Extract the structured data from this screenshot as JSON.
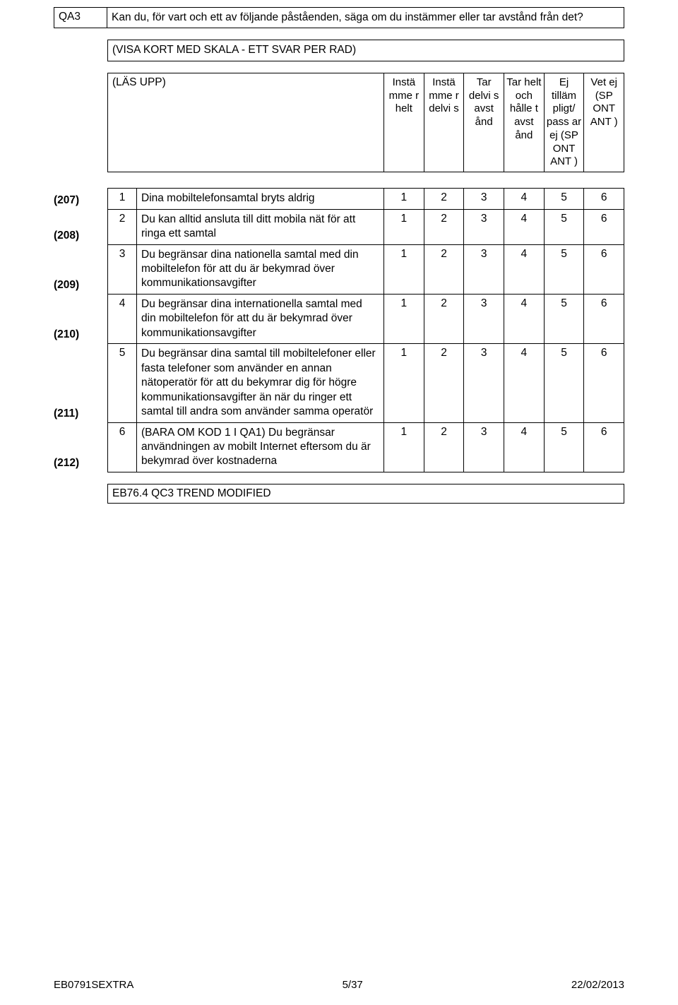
{
  "question": {
    "code": "QA3",
    "text": "Kan du, för vart och ett av följande påståenden, säga om du instämmer eller tar avstånd från det?"
  },
  "instruction": "(VISA KORT MED SKALA - ETT SVAR PER RAD)",
  "header": {
    "left": "(LÄS UPP)",
    "cols": [
      "Instä mme r helt",
      "Instä mme r delvi s",
      "Tar delvi s avst ånd",
      "Tar helt och hålle t avst ånd",
      "Ej tilläm pligt/ pass ar ej (SP ONT ANT )",
      "Vet ej (SP ONT ANT )"
    ]
  },
  "rows": [
    {
      "ref": "(207)",
      "num": "1",
      "stmt": "Dina mobiltelefonsamtal bryts aldrig",
      "vals": [
        "1",
        "2",
        "3",
        "4",
        "5",
        "6"
      ]
    },
    {
      "ref": "(208)",
      "num": "2",
      "stmt": "Du kan alltid ansluta till ditt mobila nät för att ringa ett samtal",
      "vals": [
        "1",
        "2",
        "3",
        "4",
        "5",
        "6"
      ]
    },
    {
      "ref": "(209)",
      "num": "3",
      "stmt": "Du begränsar dina nationella samtal med din mobiltelefon för att du är bekymrad över kommunikationsavgifter",
      "vals": [
        "1",
        "2",
        "3",
        "4",
        "5",
        "6"
      ]
    },
    {
      "ref": "(210)",
      "num": "4",
      "stmt": "Du begränsar dina internationella samtal med din mobiltelefon för att du är bekymrad över kommunikationsavgifter",
      "vals": [
        "1",
        "2",
        "3",
        "4",
        "5",
        "6"
      ]
    },
    {
      "ref": "(211)",
      "num": "5",
      "stmt": "Du begränsar dina samtal till mobiltelefoner eller fasta telefoner som använder en annan nätoperatör för att du bekymrar dig för högre kommunikationsavgifter än när du ringer ett samtal till andra som använder samma operatör",
      "vals": [
        "1",
        "2",
        "3",
        "4",
        "5",
        "6"
      ]
    },
    {
      "ref": "(212)",
      "num": "6",
      "stmt": "(BARA OM KOD 1 I QA1) Du begränsar användningen av mobilt Internet eftersom du är bekymrad över kostnaderna",
      "vals": [
        "1",
        "2",
        "3",
        "4",
        "5",
        "6"
      ]
    }
  ],
  "trend": "EB76.4 QC3 TREND MODIFIED",
  "footer": {
    "left": "EB0791SEXTRA",
    "center": "5/37",
    "right": "22/02/2013"
  }
}
